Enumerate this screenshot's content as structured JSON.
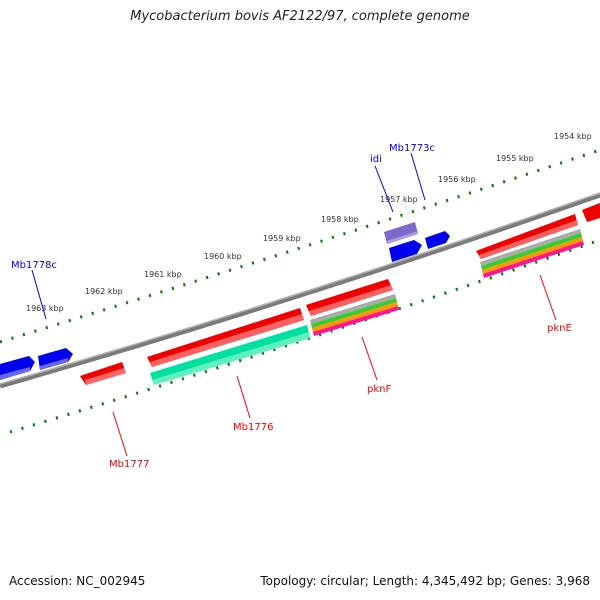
{
  "title": "Mycobacterium bovis AF2122/97, complete genome",
  "footer": {
    "accession": "Accession: NC_002945",
    "summary": "Topology: circular; Length: 4,345,492 bp; Genes: 3,968"
  },
  "scale_labels": [
    "1954 kbp",
    "1955 kbp",
    "1956 kbp",
    "1957 kbp",
    "1958 kbp",
    "1959 kbp",
    "1960 kbp",
    "1961 kbp",
    "1962 kbp",
    "1963 kbp"
  ],
  "genes": {
    "forward": [
      "Mb1778c",
      "idi",
      "Mb1773c"
    ],
    "reverse": [
      "Mb1777",
      "Mb1776",
      "pknF",
      "pknE"
    ]
  },
  "colors": {
    "forward_gene": "#0000ff",
    "reverse_gene": "#ff0000",
    "idi_gene": "#7b68c8",
    "backbone": "#808080",
    "ticks": "#007700",
    "stripe_teal": "#00e0a0"
  }
}
